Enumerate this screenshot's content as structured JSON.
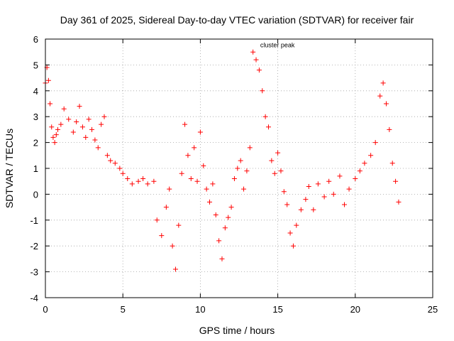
{
  "chart_data": {
    "type": "scatter",
    "title": "Day 361 of 2025, Sidereal Day-to-day VTEC variation (SDTVAR) for receiver fair",
    "xlabel": "GPS time / hours",
    "ylabel": "SDTVAR / TECUs",
    "xlim": [
      0,
      25
    ],
    "ylim": [
      -4,
      6
    ],
    "x_ticks": [
      0,
      5,
      10,
      15,
      20,
      25
    ],
    "y_ticks": [
      -4,
      -3,
      -2,
      -1,
      0,
      1,
      2,
      3,
      4,
      5,
      6
    ],
    "grid": true,
    "marker": "+",
    "color": "#ff0000",
    "series": [
      {
        "name": "SDTVAR",
        "x": [
          0.0,
          0.1,
          0.2,
          0.3,
          0.4,
          0.5,
          0.6,
          0.7,
          0.8,
          1.0,
          1.2,
          1.5,
          1.8,
          2.0,
          2.2,
          2.4,
          2.6,
          2.8,
          3.0,
          3.2,
          3.4,
          3.6,
          3.8,
          4.0,
          4.2,
          4.5,
          4.8,
          5.0,
          5.3,
          5.6,
          6.0,
          6.3,
          6.6,
          7.0,
          7.2,
          7.5,
          7.8,
          8.0,
          8.2,
          8.4,
          8.6,
          8.8,
          9.0,
          9.2,
          9.4,
          9.6,
          9.8,
          10.0,
          10.2,
          10.4,
          10.6,
          10.8,
          11.0,
          11.2,
          11.4,
          11.6,
          11.8,
          12.0,
          12.2,
          12.4,
          12.6,
          12.8,
          13.0,
          13.2,
          13.4,
          13.6,
          13.8,
          14.0,
          14.2,
          14.4,
          14.6,
          14.8,
          15.0,
          15.2,
          15.4,
          15.6,
          15.8,
          16.0,
          16.2,
          16.5,
          16.8,
          17.0,
          17.3,
          17.6,
          18.0,
          18.3,
          18.6,
          19.0,
          19.3,
          19.6,
          20.0,
          20.3,
          20.6,
          21.0,
          21.3,
          21.6,
          21.8,
          22.0,
          22.2,
          22.4,
          22.6,
          22.8
        ],
        "y": [
          4.3,
          4.9,
          4.4,
          3.5,
          2.6,
          2.2,
          2.0,
          2.3,
          2.5,
          2.7,
          3.3,
          2.9,
          2.4,
          2.8,
          3.4,
          2.6,
          2.2,
          2.9,
          2.5,
          2.1,
          1.8,
          2.7,
          3.0,
          1.5,
          1.3,
          1.2,
          1.0,
          0.8,
          0.6,
          0.4,
          0.5,
          0.6,
          0.4,
          0.5,
          -1.0,
          -1.6,
          -0.5,
          0.2,
          -2.0,
          -2.9,
          -1.2,
          0.8,
          2.7,
          1.5,
          0.6,
          1.8,
          0.5,
          2.4,
          1.1,
          0.2,
          -0.3,
          0.4,
          -0.8,
          -1.8,
          -2.5,
          -1.3,
          -0.9,
          -0.5,
          0.6,
          1.0,
          1.3,
          0.2,
          0.9,
          1.8,
          5.5,
          5.2,
          4.8,
          4.0,
          3.0,
          2.6,
          1.3,
          0.8,
          1.6,
          0.9,
          0.1,
          -0.4,
          -1.5,
          -2.0,
          -1.2,
          -0.6,
          -0.2,
          0.3,
          -0.6,
          0.4,
          -0.1,
          0.5,
          0.0,
          0.7,
          -0.4,
          0.2,
          0.6,
          0.9,
          1.2,
          1.5,
          2.0,
          3.8,
          4.3,
          3.5,
          2.5,
          1.2,
          0.5,
          -0.3
        ]
      }
    ],
    "annotations": [
      {
        "text": "cluster peak",
        "x": 13.5,
        "y": 5.8
      }
    ]
  }
}
